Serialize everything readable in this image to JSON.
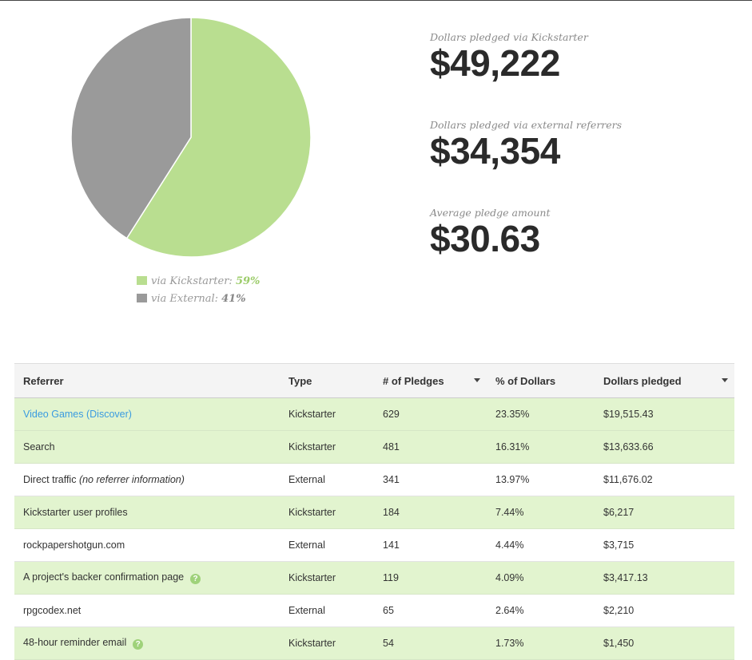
{
  "chart_data": {
    "type": "pie",
    "slices": [
      {
        "name": "via Kickstarter",
        "value": 59,
        "color": "#b9de90"
      },
      {
        "name": "via External",
        "value": 41,
        "color": "#9a9a9a"
      }
    ]
  },
  "legend": {
    "ks_label": "via Kickstarter:",
    "ks_pct": "59%",
    "ext_label": "via External:",
    "ext_pct": "41%"
  },
  "stats": {
    "ks_label": "Dollars pledged via Kickstarter",
    "ks_value": "$49,222",
    "ext_label": "Dollars pledged via external referrers",
    "ext_value": "$34,354",
    "avg_label": "Average pledge amount",
    "avg_value": "$30.63"
  },
  "table": {
    "headers": {
      "referrer": "Referrer",
      "type": "Type",
      "pledges": "# of Pledges",
      "pct": "% of Dollars",
      "dollars": "Dollars pledged"
    },
    "rows": [
      {
        "referrer": "Video Games (Discover)",
        "note": "",
        "type": "Kickstarter",
        "pledges": "629",
        "pct": "23.35%",
        "dollars": "$19,515.43",
        "link": true,
        "help": false
      },
      {
        "referrer": "Search",
        "note": "",
        "type": "Kickstarter",
        "pledges": "481",
        "pct": "16.31%",
        "dollars": "$13,633.66",
        "link": false,
        "help": false
      },
      {
        "referrer": "Direct traffic",
        "note": "(no referrer information)",
        "type": "External",
        "pledges": "341",
        "pct": "13.97%",
        "dollars": "$11,676.02",
        "link": false,
        "help": false
      },
      {
        "referrer": "Kickstarter user profiles",
        "note": "",
        "type": "Kickstarter",
        "pledges": "184",
        "pct": "7.44%",
        "dollars": "$6,217",
        "link": false,
        "help": false
      },
      {
        "referrer": "rockpapershotgun.com",
        "note": "",
        "type": "External",
        "pledges": "141",
        "pct": "4.44%",
        "dollars": "$3,715",
        "link": false,
        "help": false
      },
      {
        "referrer": "A project's backer confirmation page",
        "note": "",
        "type": "Kickstarter",
        "pledges": "119",
        "pct": "4.09%",
        "dollars": "$3,417.13",
        "link": false,
        "help": true
      },
      {
        "referrer": "rpgcodex.net",
        "note": "",
        "type": "External",
        "pledges": "65",
        "pct": "2.64%",
        "dollars": "$2,210",
        "link": false,
        "help": false
      },
      {
        "referrer": "48-hour reminder email",
        "note": "",
        "type": "Kickstarter",
        "pledges": "54",
        "pct": "1.73%",
        "dollars": "$1,450",
        "link": false,
        "help": true
      }
    ],
    "help_icon_glyph": "?"
  }
}
